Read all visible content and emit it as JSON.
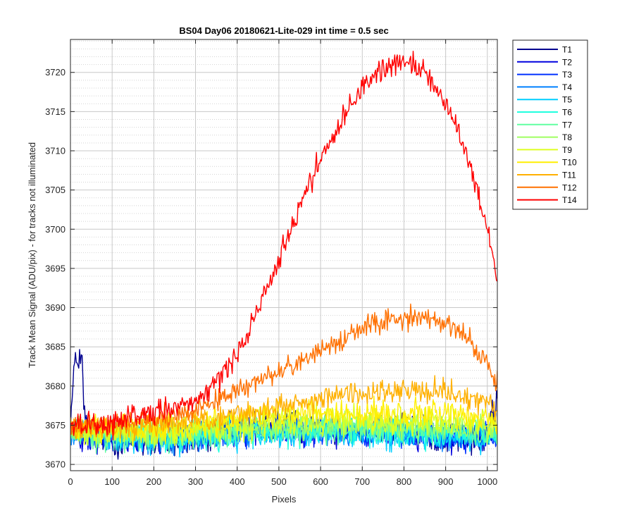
{
  "chart_data": {
    "type": "line",
    "title": "BS04 Day06 20180621-Lite-029 int time = 0.5 sec",
    "xlabel": "Pixels",
    "ylabel": "Track Mean Signal (ADU/pix) - for tracks not illuminated",
    "xlim": [
      0,
      1024
    ],
    "ylim": [
      3669.2,
      3724.2
    ],
    "xticks": [
      0,
      100,
      200,
      300,
      400,
      500,
      600,
      700,
      800,
      900,
      1000
    ],
    "yticks": [
      3670,
      3675,
      3680,
      3685,
      3690,
      3695,
      3700,
      3705,
      3710,
      3715,
      3720
    ],
    "grid": true,
    "minor_grid_y": true,
    "legend_position": "outside-right",
    "series": [
      {
        "name": "T1",
        "color": "#00008F",
        "noise": 2.0,
        "points": [
          [
            0,
            3676
          ],
          [
            4,
            3678
          ],
          [
            8,
            3682
          ],
          [
            15,
            3683
          ],
          [
            22,
            3684
          ],
          [
            28,
            3683
          ],
          [
            32,
            3677
          ],
          [
            40,
            3674.5
          ],
          [
            100,
            3673
          ],
          [
            200,
            3672.5
          ],
          [
            300,
            3673
          ],
          [
            400,
            3674.5
          ],
          [
            500,
            3675
          ],
          [
            600,
            3674.8
          ],
          [
            700,
            3674.3
          ],
          [
            800,
            3674.5
          ],
          [
            900,
            3673.5
          ],
          [
            1000,
            3673
          ],
          [
            1010,
            3676
          ],
          [
            1024,
            3678
          ]
        ]
      },
      {
        "name": "T2",
        "color": "#0000DF",
        "noise": 1.8,
        "points": [
          [
            0,
            3674
          ],
          [
            100,
            3673.2
          ],
          [
            200,
            3673
          ],
          [
            300,
            3673.3
          ],
          [
            400,
            3674.3
          ],
          [
            500,
            3674.5
          ],
          [
            600,
            3674.3
          ],
          [
            700,
            3674.1
          ],
          [
            800,
            3674
          ],
          [
            900,
            3673.6
          ],
          [
            1024,
            3673.5
          ]
        ]
      },
      {
        "name": "T3",
        "color": "#0030FF",
        "noise": 1.8,
        "points": [
          [
            0,
            3674
          ],
          [
            100,
            3673.3
          ],
          [
            200,
            3673.2
          ],
          [
            300,
            3673.5
          ],
          [
            400,
            3674
          ],
          [
            500,
            3674.2
          ],
          [
            600,
            3674.2
          ],
          [
            700,
            3674
          ],
          [
            800,
            3673.8
          ],
          [
            900,
            3673.6
          ],
          [
            1024,
            3673.4
          ]
        ]
      },
      {
        "name": "T4",
        "color": "#0080FF",
        "noise": 1.8,
        "points": [
          [
            0,
            3674
          ],
          [
            100,
            3673.5
          ],
          [
            200,
            3673.3
          ],
          [
            300,
            3673.6
          ],
          [
            400,
            3674
          ],
          [
            500,
            3674.2
          ],
          [
            600,
            3674.2
          ],
          [
            700,
            3674.1
          ],
          [
            800,
            3674
          ],
          [
            900,
            3673.8
          ],
          [
            1024,
            3673.6
          ]
        ]
      },
      {
        "name": "T5",
        "color": "#00CFFF",
        "noise": 1.8,
        "points": [
          [
            0,
            3673.8
          ],
          [
            100,
            3673.4
          ],
          [
            200,
            3673.2
          ],
          [
            300,
            3673.4
          ],
          [
            400,
            3673.8
          ],
          [
            500,
            3674
          ],
          [
            600,
            3674
          ],
          [
            700,
            3673.9
          ],
          [
            800,
            3673.8
          ],
          [
            900,
            3673.6
          ],
          [
            1024,
            3673.4
          ]
        ]
      },
      {
        "name": "T6",
        "color": "#20FFDF",
        "noise": 1.8,
        "points": [
          [
            0,
            3674
          ],
          [
            100,
            3673.6
          ],
          [
            200,
            3673.4
          ],
          [
            300,
            3673.6
          ],
          [
            400,
            3674
          ],
          [
            500,
            3674.2
          ],
          [
            600,
            3674.3
          ],
          [
            700,
            3674.3
          ],
          [
            800,
            3674.1
          ],
          [
            900,
            3674
          ],
          [
            1024,
            3673.8
          ]
        ]
      },
      {
        "name": "T7",
        "color": "#60FFA0",
        "noise": 1.8,
        "points": [
          [
            0,
            3674
          ],
          [
            100,
            3673.8
          ],
          [
            200,
            3673.6
          ],
          [
            300,
            3673.8
          ],
          [
            400,
            3674.2
          ],
          [
            500,
            3674.5
          ],
          [
            600,
            3674.6
          ],
          [
            700,
            3674.6
          ],
          [
            800,
            3674.5
          ],
          [
            900,
            3674.3
          ],
          [
            1024,
            3674
          ]
        ]
      },
      {
        "name": "T8",
        "color": "#9FFF60",
        "noise": 1.8,
        "points": [
          [
            0,
            3674.2
          ],
          [
            100,
            3674
          ],
          [
            200,
            3673.8
          ],
          [
            300,
            3674
          ],
          [
            400,
            3674.5
          ],
          [
            500,
            3674.8
          ],
          [
            600,
            3675
          ],
          [
            700,
            3675
          ],
          [
            800,
            3674.9
          ],
          [
            900,
            3674.7
          ],
          [
            1024,
            3674.4
          ]
        ]
      },
      {
        "name": "T9",
        "color": "#DFFF20",
        "noise": 1.8,
        "points": [
          [
            0,
            3674.4
          ],
          [
            100,
            3674.2
          ],
          [
            200,
            3674.1
          ],
          [
            300,
            3674.4
          ],
          [
            400,
            3675
          ],
          [
            500,
            3675.4
          ],
          [
            600,
            3675.6
          ],
          [
            700,
            3675.6
          ],
          [
            800,
            3675.5
          ],
          [
            900,
            3675.3
          ],
          [
            1024,
            3675
          ]
        ]
      },
      {
        "name": "T10",
        "color": "#FFEF00",
        "noise": 1.8,
        "points": [
          [
            0,
            3674.6
          ],
          [
            100,
            3674.5
          ],
          [
            200,
            3674.5
          ],
          [
            300,
            3674.9
          ],
          [
            400,
            3675.6
          ],
          [
            500,
            3676.2
          ],
          [
            600,
            3676.5
          ],
          [
            700,
            3676.6
          ],
          [
            800,
            3676.5
          ],
          [
            900,
            3676.3
          ],
          [
            1024,
            3675.8
          ]
        ]
      },
      {
        "name": "T11",
        "color": "#FFB000",
        "noise": 1.6,
        "points": [
          [
            0,
            3675
          ],
          [
            100,
            3674.9
          ],
          [
            200,
            3675.1
          ],
          [
            300,
            3675.6
          ],
          [
            400,
            3676.5
          ],
          [
            500,
            3677.4
          ],
          [
            600,
            3678.2
          ],
          [
            700,
            3678.9
          ],
          [
            800,
            3679.4
          ],
          [
            900,
            3679.3
          ],
          [
            1000,
            3678
          ],
          [
            1024,
            3677
          ]
        ]
      },
      {
        "name": "T12",
        "color": "#FF7000",
        "noise": 1.4,
        "points": [
          [
            0,
            3675
          ],
          [
            100,
            3675
          ],
          [
            200,
            3675.8
          ],
          [
            300,
            3677
          ],
          [
            350,
            3678.2
          ],
          [
            400,
            3679.3
          ],
          [
            450,
            3680.6
          ],
          [
            500,
            3682
          ],
          [
            550,
            3683.3
          ],
          [
            600,
            3684.6
          ],
          [
            650,
            3685.9
          ],
          [
            700,
            3687.2
          ],
          [
            750,
            3688.2
          ],
          [
            800,
            3688.8
          ],
          [
            850,
            3688.9
          ],
          [
            900,
            3688.1
          ],
          [
            950,
            3686.2
          ],
          [
            1000,
            3683
          ],
          [
            1024,
            3680
          ]
        ]
      },
      {
        "name": "T14",
        "color": "#FF0000",
        "noise": 1.6,
        "points": [
          [
            0,
            3675
          ],
          [
            100,
            3675.2
          ],
          [
            200,
            3676.3
          ],
          [
            250,
            3677.3
          ],
          [
            300,
            3678.3
          ],
          [
            350,
            3680.3
          ],
          [
            400,
            3684
          ],
          [
            450,
            3689.5
          ],
          [
            500,
            3696
          ],
          [
            550,
            3703
          ],
          [
            600,
            3709
          ],
          [
            650,
            3714
          ],
          [
            700,
            3718
          ],
          [
            750,
            3720.5
          ],
          [
            800,
            3721.6
          ],
          [
            850,
            3720.2
          ],
          [
            900,
            3716
          ],
          [
            950,
            3709.5
          ],
          [
            1000,
            3700
          ],
          [
            1024,
            3693.5
          ]
        ]
      }
    ]
  }
}
